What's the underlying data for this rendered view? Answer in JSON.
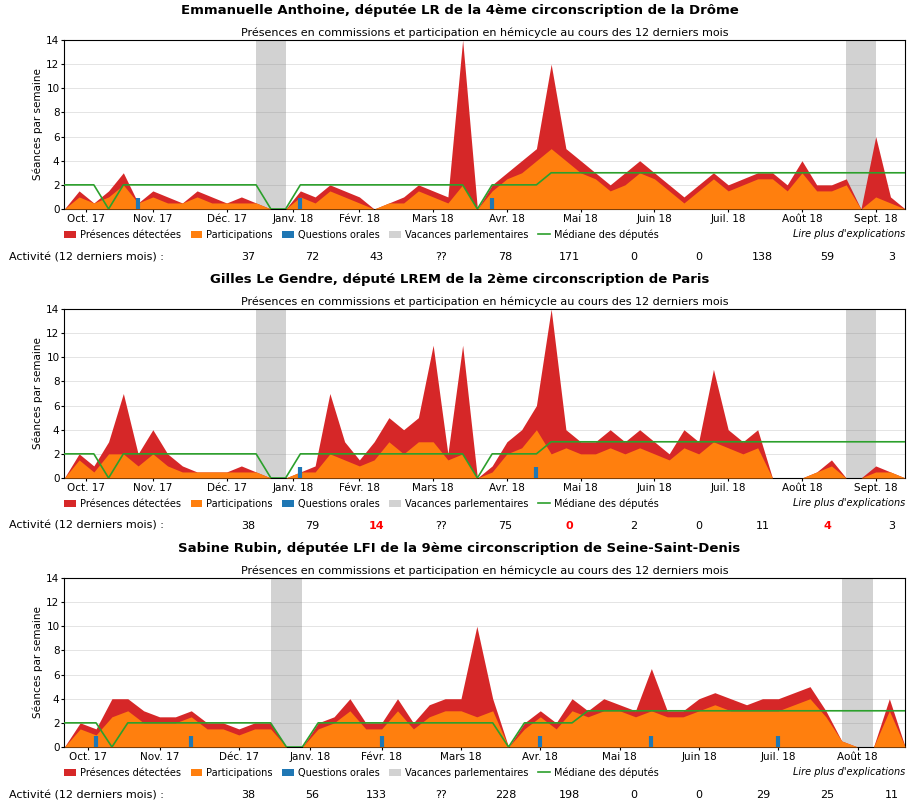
{
  "chart_data": [
    {
      "type": "area",
      "title": "Emmanuelle Anthoine, députée LR de la 4ème circonscription de la Drôme",
      "subtitle": "Présences en commissions et participation en hémicycle au cours des 12 derniers mois",
      "y_label": "Séances par semaine",
      "x": [
        0,
        1,
        2,
        3,
        4,
        5,
        6,
        7,
        8,
        9,
        10,
        11,
        12,
        13,
        14,
        15,
        16,
        17,
        18,
        19,
        20,
        21,
        22,
        23,
        24,
        25,
        26,
        27,
        28,
        29,
        30,
        31,
        32,
        33,
        34,
        35,
        36,
        37,
        38,
        39,
        40,
        41,
        42,
        43,
        44,
        45,
        46,
        47,
        48,
        49,
        50,
        51,
        52,
        53,
        54,
        55,
        56,
        57
      ],
      "series": [
        {
          "name": "Présences détectées",
          "type": "area",
          "color": "#d62728",
          "values": [
            0,
            1.5,
            0.5,
            1.5,
            3,
            0.5,
            1.5,
            1,
            0.5,
            1.5,
            1,
            0.5,
            1,
            0.5,
            0,
            0,
            1.5,
            1,
            2,
            1.5,
            1,
            0,
            0.5,
            1,
            2,
            1.5,
            1,
            14,
            0,
            2,
            3,
            4,
            5,
            12,
            5,
            4,
            3,
            2,
            3,
            4,
            3,
            2,
            1,
            2,
            3,
            2,
            2.5,
            3,
            3,
            2,
            4,
            2,
            2,
            2.5,
            0,
            6,
            1,
            0
          ]
        },
        {
          "name": "Participations",
          "type": "area",
          "color": "#ff7f0e",
          "values": [
            0,
            1,
            0.5,
            1,
            2,
            0.5,
            1,
            0.5,
            0.5,
            1,
            0.5,
            0.5,
            0.5,
            0.5,
            0,
            0,
            1,
            0.5,
            1.5,
            1,
            0.5,
            0,
            0.5,
            0.5,
            1.5,
            1,
            0.5,
            2,
            0,
            1.5,
            2.5,
            3,
            4,
            5,
            4,
            3,
            2.5,
            1.5,
            2,
            3,
            2.5,
            1.5,
            0.5,
            1.5,
            2.5,
            1.5,
            2,
            2.5,
            2.5,
            1.5,
            3,
            1.5,
            1.5,
            2,
            0,
            1,
            0.5,
            0
          ]
        },
        {
          "name": "Questions orales",
          "type": "bar",
          "color": "#1f77b4",
          "x": [
            5,
            16,
            29
          ],
          "values": [
            0.9,
            0.9,
            0.9
          ]
        },
        {
          "name": "Vacances parlementaires",
          "type": "span",
          "color": "#7f7f7f",
          "periods": [
            [
              13,
              15
            ],
            [
              53,
              55
            ]
          ]
        },
        {
          "name": "Médiane des députés",
          "type": "line",
          "color": "#2ca02c",
          "values": [
            2,
            2,
            2,
            0,
            2,
            2,
            2,
            2,
            2,
            2,
            2,
            2,
            2,
            2,
            0,
            0,
            2,
            2,
            2,
            2,
            2,
            2,
            2,
            2,
            2,
            2,
            2,
            2,
            0,
            2,
            2,
            2,
            2,
            3,
            3,
            3,
            3,
            3,
            3,
            3,
            3,
            3,
            3,
            3,
            3,
            3,
            3,
            3,
            3,
            3,
            3,
            3,
            3,
            3,
            3,
            3,
            3,
            3
          ]
        }
      ],
      "xlim": [
        0,
        57
      ],
      "xticks": [
        {
          "value": 1.5,
          "label": "Oct. 17"
        },
        {
          "value": 6,
          "label": "Nov. 17"
        },
        {
          "value": 11,
          "label": "Déc. 17"
        },
        {
          "value": 15.5,
          "label": "Janv. 18"
        },
        {
          "value": 20,
          "label": "Févr. 18"
        },
        {
          "value": 25,
          "label": "Mars 18"
        },
        {
          "value": 30,
          "label": "Avr. 18"
        },
        {
          "value": 35,
          "label": "Mai 18"
        },
        {
          "value": 40,
          "label": "Juin 18"
        },
        {
          "value": 45,
          "label": "Juil. 18"
        },
        {
          "value": 50,
          "label": "Août 18"
        },
        {
          "value": 55,
          "label": "Sept. 18"
        }
      ],
      "ylim": [
        0,
        14
      ],
      "yticks": [
        0,
        2,
        4,
        6,
        8,
        10,
        12,
        14
      ],
      "grid": true,
      "legend": "upper left",
      "annotations": [
        "Lire plus d'explications"
      ],
      "activity": {
        "label": "Activité (12 derniers mois) :",
        "values": [
          "37",
          "72",
          "43",
          "??",
          "78",
          "171",
          "0",
          "0",
          "138",
          "59",
          "3"
        ],
        "colors": [
          "black",
          "black",
          "black",
          "black",
          "black",
          "black",
          "black",
          "black",
          "black",
          "black",
          "black"
        ]
      }
    },
    {
      "type": "area",
      "title": "Gilles Le Gendre, député LREM de la 2ème circonscription de Paris",
      "subtitle": "Présences en commissions et participation en hémicycle au cours des 12 derniers mois",
      "y_label": "Séances par semaine",
      "x": [
        0,
        1,
        2,
        3,
        4,
        5,
        6,
        7,
        8,
        9,
        10,
        11,
        12,
        13,
        14,
        15,
        16,
        17,
        18,
        19,
        20,
        21,
        22,
        23,
        24,
        25,
        26,
        27,
        28,
        29,
        30,
        31,
        32,
        33,
        34,
        35,
        36,
        37,
        38,
        39,
        40,
        41,
        42,
        43,
        44,
        45,
        46,
        47,
        48,
        49,
        50,
        51,
        52,
        53,
        54,
        55,
        56,
        57
      ],
      "series": [
        {
          "name": "Présences détectées",
          "type": "area",
          "color": "#d62728",
          "values": [
            0,
            2,
            1,
            3,
            7,
            2,
            4,
            2,
            1,
            0.5,
            0.5,
            0.5,
            1,
            0.5,
            0,
            0,
            0.5,
            1,
            7,
            3,
            1.5,
            3,
            5,
            4,
            5,
            11,
            2,
            11,
            0,
            1,
            3,
            4,
            6,
            14,
            4,
            3,
            3,
            4,
            3,
            4,
            3,
            2,
            4,
            3,
            9,
            4,
            3,
            4,
            0,
            0,
            0,
            0.5,
            1.5,
            0,
            0,
            1,
            0.5,
            0
          ]
        },
        {
          "name": "Participations",
          "type": "area",
          "color": "#ff7f0e",
          "values": [
            0,
            1.5,
            0.5,
            2,
            2,
            1,
            2,
            1,
            0.5,
            0.5,
            0.5,
            0.5,
            0.5,
            0.5,
            0,
            0,
            0.5,
            0.5,
            2,
            1.5,
            1,
            1.5,
            3,
            2,
            3,
            3,
            1.5,
            2,
            0,
            0.5,
            2,
            2.5,
            4,
            2,
            2.5,
            2,
            2,
            2.5,
            2,
            2.5,
            2,
            1.5,
            2.5,
            2,
            3,
            2.5,
            2,
            2.5,
            0,
            0,
            0,
            0.5,
            1,
            0,
            0,
            0.5,
            0.5,
            0
          ]
        },
        {
          "name": "Questions orales",
          "type": "bar",
          "color": "#1f77b4",
          "x": [
            16,
            32
          ],
          "values": [
            0.9,
            0.9
          ]
        },
        {
          "name": "Vacances parlementaires",
          "type": "span",
          "color": "#7f7f7f",
          "periods": [
            [
              13,
              15
            ],
            [
              53,
              55
            ]
          ]
        },
        {
          "name": "Médiane des députés",
          "type": "line",
          "color": "#2ca02c",
          "values": [
            2,
            2,
            2,
            0,
            2,
            2,
            2,
            2,
            2,
            2,
            2,
            2,
            2,
            2,
            0,
            0,
            2,
            2,
            2,
            2,
            2,
            2,
            2,
            2,
            2,
            2,
            2,
            2,
            0,
            2,
            2,
            2,
            2,
            3,
            3,
            3,
            3,
            3,
            3,
            3,
            3,
            3,
            3,
            3,
            3,
            3,
            3,
            3,
            3,
            3,
            3,
            3,
            3,
            3,
            3,
            3,
            3,
            3
          ]
        }
      ],
      "xlim": [
        0,
        57
      ],
      "xticks": [
        {
          "value": 1.5,
          "label": "Oct. 17"
        },
        {
          "value": 6,
          "label": "Nov. 17"
        },
        {
          "value": 11,
          "label": "Déc. 17"
        },
        {
          "value": 15.5,
          "label": "Janv. 18"
        },
        {
          "value": 20,
          "label": "Févr. 18"
        },
        {
          "value": 25,
          "label": "Mars 18"
        },
        {
          "value": 30,
          "label": "Avr. 18"
        },
        {
          "value": 35,
          "label": "Mai 18"
        },
        {
          "value": 40,
          "label": "Juin 18"
        },
        {
          "value": 45,
          "label": "Juil. 18"
        },
        {
          "value": 50,
          "label": "Août 18"
        },
        {
          "value": 55,
          "label": "Sept. 18"
        }
      ],
      "ylim": [
        0,
        14
      ],
      "yticks": [
        0,
        2,
        4,
        6,
        8,
        10,
        12,
        14
      ],
      "grid": true,
      "legend": "upper left",
      "annotations": [
        "Lire plus d'explications"
      ],
      "activity": {
        "label": "Activité (12 derniers mois) :",
        "values": [
          "38",
          "79",
          "14",
          "??",
          "75",
          "0",
          "2",
          "0",
          "11",
          "4",
          "3"
        ],
        "colors": [
          "black",
          "black",
          "red",
          "black",
          "black",
          "red",
          "black",
          "black",
          "black",
          "red",
          "black"
        ]
      }
    },
    {
      "type": "area",
      "title": "Sabine Rubin, députée LFI de la 9ème circonscription de Seine-Saint-Denis",
      "subtitle": "Présences en commissions et participation en hémicycle au cours des 12 derniers mois",
      "y_label": "Séances par semaine",
      "x": [
        0,
        1,
        2,
        3,
        4,
        5,
        6,
        7,
        8,
        9,
        10,
        11,
        12,
        13,
        14,
        15,
        16,
        17,
        18,
        19,
        20,
        21,
        22,
        23,
        24,
        25,
        26,
        27,
        28,
        29,
        30,
        31,
        32,
        33,
        34,
        35,
        36,
        37,
        38,
        39,
        40,
        41,
        42,
        43,
        44,
        45,
        46,
        47,
        48,
        49,
        50,
        51,
        52,
        53
      ],
      "series": [
        {
          "name": "Présences détectées",
          "type": "area",
          "color": "#d62728",
          "values": [
            0,
            2,
            1.5,
            4,
            4,
            3,
            2.5,
            2.5,
            3,
            2,
            2,
            1.5,
            2,
            2,
            0,
            0,
            2,
            2.5,
            4,
            2,
            2,
            4,
            2,
            3.5,
            4,
            4,
            10,
            4,
            0,
            2,
            3,
            2,
            4,
            3,
            4,
            3.5,
            3,
            6.5,
            3,
            3,
            4,
            4.5,
            4,
            3.5,
            4,
            4,
            4.5,
            5,
            3,
            0.5,
            0,
            0,
            4,
            0
          ]
        },
        {
          "name": "Participations",
          "type": "area",
          "color": "#ff7f0e",
          "values": [
            0,
            1.5,
            1,
            2.5,
            3,
            2,
            2,
            2,
            2.5,
            1.5,
            1.5,
            1,
            1.5,
            1.5,
            0,
            0,
            1.5,
            2,
            3,
            1.5,
            1.5,
            3,
            1.5,
            2.5,
            3,
            3,
            2.5,
            3,
            0,
            1.5,
            2.5,
            1.5,
            3,
            2.5,
            3,
            3,
            2.5,
            3,
            2.5,
            2.5,
            3,
            3.5,
            3,
            3,
            3,
            3,
            3.5,
            4,
            2.5,
            0.5,
            0,
            0,
            3,
            0
          ]
        },
        {
          "name": "Questions orales",
          "type": "bar",
          "color": "#1f77b4",
          "x": [
            2,
            8,
            20,
            30,
            37,
            45
          ],
          "values": [
            0.9,
            0.9,
            0.9,
            0.9,
            0.9,
            0.9
          ]
        },
        {
          "name": "Vacances parlementaires",
          "type": "span",
          "color": "#7f7f7f",
          "periods": [
            [
              13,
              15
            ],
            [
              49,
              51
            ]
          ]
        },
        {
          "name": "Médiane des députés",
          "type": "line",
          "color": "#2ca02c",
          "values": [
            2,
            2,
            2,
            0,
            2,
            2,
            2,
            2,
            2,
            2,
            2,
            2,
            2,
            2,
            0,
            0,
            2,
            2,
            2,
            2,
            2,
            2,
            2,
            2,
            2,
            2,
            2,
            2,
            0,
            2,
            2,
            2,
            2,
            3,
            3,
            3,
            3,
            3,
            3,
            3,
            3,
            3,
            3,
            3,
            3,
            3,
            3,
            3,
            3,
            3,
            3,
            3,
            3,
            3
          ]
        }
      ],
      "xlim": [
        0,
        53
      ],
      "xticks": [
        {
          "value": 1.5,
          "label": "Oct. 17"
        },
        {
          "value": 6,
          "label": "Nov. 17"
        },
        {
          "value": 11,
          "label": "Déc. 17"
        },
        {
          "value": 15.5,
          "label": "Janv. 18"
        },
        {
          "value": 20,
          "label": "Févr. 18"
        },
        {
          "value": 25,
          "label": "Mars 18"
        },
        {
          "value": 30,
          "label": "Avr. 18"
        },
        {
          "value": 35,
          "label": "Mai 18"
        },
        {
          "value": 40,
          "label": "Juin 18"
        },
        {
          "value": 45,
          "label": "Juil. 18"
        },
        {
          "value": 50,
          "label": "Août 18"
        }
      ],
      "ylim": [
        0,
        14
      ],
      "yticks": [
        0,
        2,
        4,
        6,
        8,
        10,
        12,
        14
      ],
      "grid": true,
      "legend": "upper left",
      "annotations": [
        "Lire plus d'explications"
      ],
      "activity": {
        "label": "Activité (12 derniers mois) :",
        "values": [
          "38",
          "56",
          "133",
          "??",
          "228",
          "198",
          "0",
          "0",
          "29",
          "25",
          "11"
        ],
        "colors": [
          "black",
          "black",
          "black",
          "black",
          "black",
          "black",
          "black",
          "black",
          "black",
          "black",
          "black"
        ]
      }
    }
  ]
}
